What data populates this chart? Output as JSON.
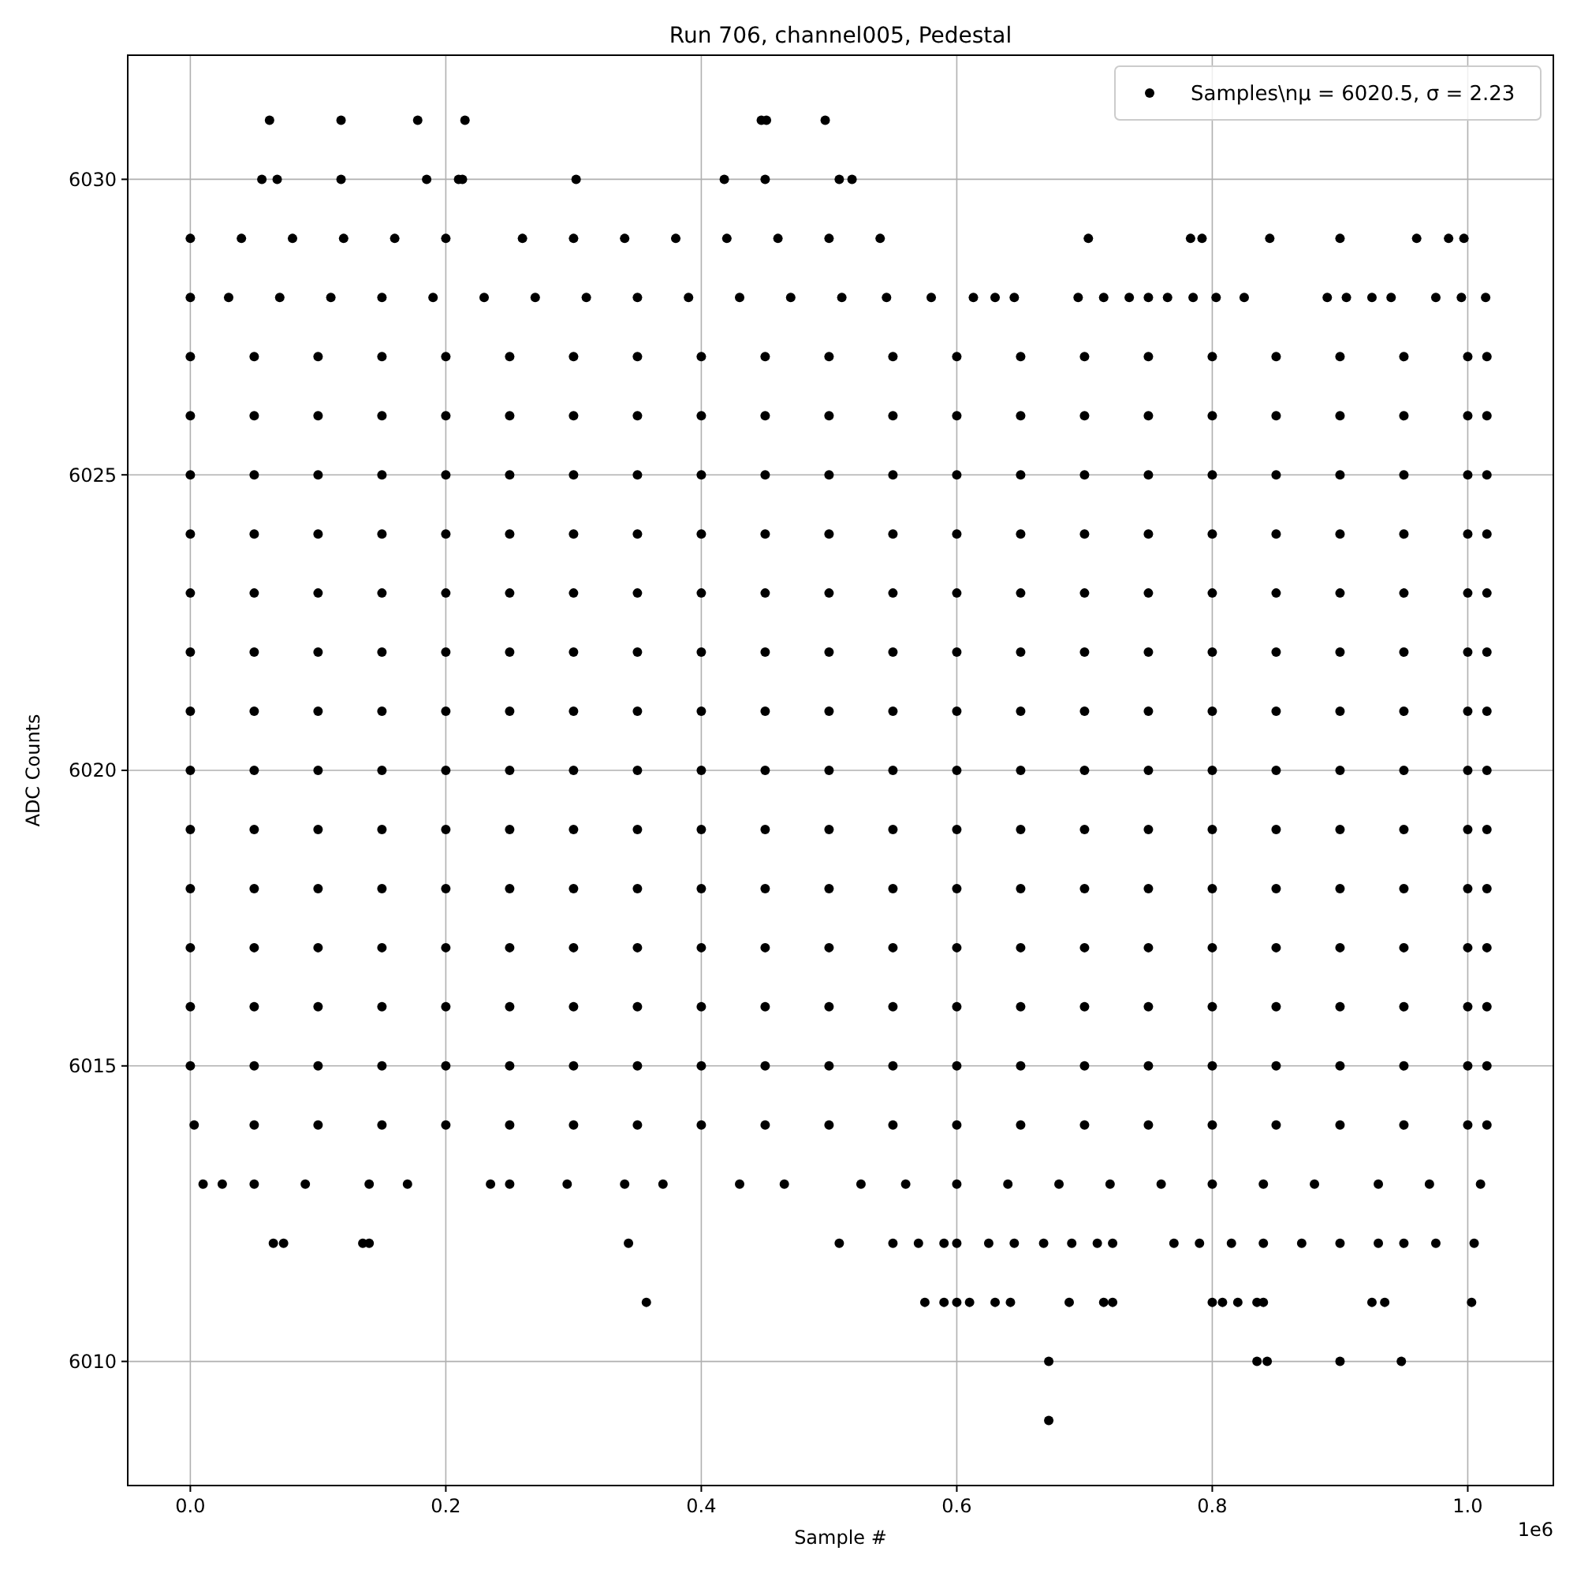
{
  "chart_data": {
    "type": "scatter",
    "title": "Run 706, channel005, Pedestal",
    "xlabel": "Sample #",
    "ylabel": "ADC Counts",
    "annotations": [
      "1e6"
    ],
    "xlim": [
      -0.049,
      1.067
    ],
    "ylim": [
      6007.9,
      6032.1
    ],
    "xticks": [
      {
        "value": 0,
        "label": "0.0"
      },
      0.2,
      0.4,
      0.6,
      0.8,
      {
        "value": 1,
        "label": "1.0"
      }
    ],
    "yticks": [
      6010,
      6015,
      6020,
      6025,
      6030
    ],
    "grid": true,
    "legend": "top right",
    "marker": "circle",
    "series": [
      {
        "name": "Samples\\nμ = 6020.5, σ = 2.23",
        "color": "#000000",
        "x": [
          0.062,
          0.118,
          0.178,
          0.215,
          0.447,
          0.451,
          0.497,
          0.056,
          0.068,
          0.118,
          0.185,
          0.21,
          0.213,
          0.302,
          0.418,
          0.45,
          0.508,
          0.518,
          0,
          0.04,
          0.08,
          0.12,
          0.16,
          0.2,
          0.26,
          0.3,
          0.34,
          0.38,
          0.42,
          0.46,
          0.5,
          0.54,
          0.703,
          0.783,
          0.792,
          0.845,
          0.9,
          0.96,
          0.985,
          0.997,
          0,
          0.03,
          0.07,
          0.11,
          0.15,
          0.19,
          0.23,
          0.27,
          0.31,
          0.35,
          0.39,
          0.43,
          0.47,
          0.51,
          0.545,
          0.58,
          0.613,
          0.63,
          0.645,
          0.695,
          0.715,
          0.735,
          0.75,
          0.765,
          0.785,
          0.803,
          0.825,
          0.89,
          0.905,
          0.925,
          0.94,
          0.975,
          0.995,
          1.014,
          0,
          0.05,
          0.1,
          0.15,
          0.2,
          0.25,
          0.3,
          0.35,
          0.4,
          0.45,
          0.5,
          0.55,
          0.6,
          0.65,
          0.7,
          0.75,
          0.8,
          0.85,
          0.9,
          0.95,
          1,
          1.015,
          0,
          0.05,
          0.1,
          0.15,
          0.2,
          0.25,
          0.3,
          0.35,
          0.4,
          0.45,
          0.5,
          0.55,
          0.6,
          0.65,
          0.7,
          0.75,
          0.8,
          0.85,
          0.9,
          0.95,
          1,
          1.015,
          0,
          0.05,
          0.1,
          0.15,
          0.2,
          0.25,
          0.3,
          0.35,
          0.4,
          0.45,
          0.5,
          0.55,
          0.6,
          0.65,
          0.7,
          0.75,
          0.8,
          0.85,
          0.9,
          0.95,
          1,
          1.015,
          0,
          0.05,
          0.1,
          0.15,
          0.2,
          0.25,
          0.3,
          0.35,
          0.4,
          0.45,
          0.5,
          0.55,
          0.6,
          0.65,
          0.7,
          0.75,
          0.8,
          0.85,
          0.9,
          0.95,
          1,
          1.015,
          0,
          0.05,
          0.1,
          0.15,
          0.2,
          0.25,
          0.3,
          0.35,
          0.4,
          0.45,
          0.5,
          0.55,
          0.6,
          0.65,
          0.7,
          0.75,
          0.8,
          0.85,
          0.9,
          0.95,
          1,
          1.015,
          0,
          0.05,
          0.1,
          0.15,
          0.2,
          0.25,
          0.3,
          0.35,
          0.4,
          0.45,
          0.5,
          0.55,
          0.6,
          0.65,
          0.7,
          0.75,
          0.8,
          0.85,
          0.9,
          0.95,
          1,
          1.015,
          0,
          0.05,
          0.1,
          0.15,
          0.2,
          0.25,
          0.3,
          0.35,
          0.4,
          0.45,
          0.5,
          0.55,
          0.6,
          0.65,
          0.7,
          0.75,
          0.8,
          0.85,
          0.9,
          0.95,
          1,
          1.015,
          0,
          0.05,
          0.1,
          0.15,
          0.2,
          0.25,
          0.3,
          0.35,
          0.4,
          0.45,
          0.5,
          0.55,
          0.6,
          0.65,
          0.7,
          0.75,
          0.8,
          0.85,
          0.9,
          0.95,
          1,
          1.015,
          0,
          0.05,
          0.1,
          0.15,
          0.2,
          0.25,
          0.3,
          0.35,
          0.4,
          0.45,
          0.5,
          0.55,
          0.6,
          0.65,
          0.7,
          0.75,
          0.8,
          0.85,
          0.9,
          0.95,
          1,
          1.015,
          0,
          0.05,
          0.1,
          0.15,
          0.2,
          0.25,
          0.3,
          0.35,
          0.4,
          0.45,
          0.5,
          0.55,
          0.6,
          0.65,
          0.7,
          0.75,
          0.8,
          0.85,
          0.9,
          0.95,
          1,
          1.015,
          0,
          0.05,
          0.1,
          0.15,
          0.2,
          0.25,
          0.3,
          0.35,
          0.4,
          0.45,
          0.5,
          0.55,
          0.6,
          0.65,
          0.7,
          0.75,
          0.8,
          0.85,
          0.9,
          0.95,
          1,
          1.015,
          0,
          0.05,
          0.1,
          0.15,
          0.2,
          0.25,
          0.3,
          0.35,
          0.4,
          0.45,
          0.5,
          0.55,
          0.6,
          0.65,
          0.7,
          0.75,
          0.8,
          0.85,
          0.9,
          0.95,
          1,
          1.015,
          0,
          0.05,
          0.1,
          0.15,
          0.2,
          0.25,
          0.3,
          0.35,
          0.4,
          0.45,
          0.5,
          0.55,
          0.6,
          0.65,
          0.7,
          0.75,
          0.8,
          0.85,
          0.9,
          0.95,
          1,
          1.015,
          0.003,
          0.05,
          0.1,
          0.15,
          0.2,
          0.25,
          0.3,
          0.35,
          0.4,
          0.45,
          0.5,
          0.55,
          0.6,
          0.65,
          0.7,
          0.75,
          0.8,
          0.85,
          0.9,
          0.95,
          1,
          1.015,
          0.01,
          0.025,
          0.05,
          0.09,
          0.14,
          0.17,
          0.235,
          0.25,
          0.295,
          0.34,
          0.37,
          0.43,
          0.465,
          0.525,
          0.56,
          0.6,
          0.64,
          0.68,
          0.72,
          0.76,
          0.8,
          0.84,
          0.88,
          0.93,
          0.97,
          1.01,
          0.065,
          0.073,
          0.135,
          0.14,
          0.343,
          0.508,
          0.55,
          0.57,
          0.59,
          0.6,
          0.625,
          0.645,
          0.668,
          0.69,
          0.71,
          0.722,
          0.77,
          0.79,
          0.815,
          0.84,
          0.87,
          0.9,
          0.93,
          0.95,
          0.975,
          1.005,
          0.357,
          0.575,
          0.59,
          0.6,
          0.61,
          0.63,
          0.642,
          0.688,
          0.715,
          0.722,
          0.8,
          0.808,
          0.82,
          0.835,
          0.84,
          0.925,
          0.935,
          1.003,
          0.672,
          0.835,
          0.843,
          0.9,
          0.948,
          0.672
        ],
        "values": [
          6031,
          6031,
          6031,
          6031,
          6031,
          6031,
          6031,
          6030,
          6030,
          6030,
          6030,
          6030,
          6030,
          6030,
          6030,
          6030,
          6030,
          6030,
          6029,
          6029,
          6029,
          6029,
          6029,
          6029,
          6029,
          6029,
          6029,
          6029,
          6029,
          6029,
          6029,
          6029,
          6029,
          6029,
          6029,
          6029,
          6029,
          6029,
          6029,
          6029,
          6028,
          6028,
          6028,
          6028,
          6028,
          6028,
          6028,
          6028,
          6028,
          6028,
          6028,
          6028,
          6028,
          6028,
          6028,
          6028,
          6028,
          6028,
          6028,
          6028,
          6028,
          6028,
          6028,
          6028,
          6028,
          6028,
          6028,
          6028,
          6028,
          6028,
          6028,
          6028,
          6028,
          6028,
          6027,
          6027,
          6027,
          6027,
          6027,
          6027,
          6027,
          6027,
          6027,
          6027,
          6027,
          6027,
          6027,
          6027,
          6027,
          6027,
          6027,
          6027,
          6027,
          6027,
          6027,
          6027,
          6026,
          6026,
          6026,
          6026,
          6026,
          6026,
          6026,
          6026,
          6026,
          6026,
          6026,
          6026,
          6026,
          6026,
          6026,
          6026,
          6026,
          6026,
          6026,
          6026,
          6026,
          6026,
          6025,
          6025,
          6025,
          6025,
          6025,
          6025,
          6025,
          6025,
          6025,
          6025,
          6025,
          6025,
          6025,
          6025,
          6025,
          6025,
          6025,
          6025,
          6025,
          6025,
          6025,
          6025,
          6024,
          6024,
          6024,
          6024,
          6024,
          6024,
          6024,
          6024,
          6024,
          6024,
          6024,
          6024,
          6024,
          6024,
          6024,
          6024,
          6024,
          6024,
          6024,
          6024,
          6024,
          6024,
          6023,
          6023,
          6023,
          6023,
          6023,
          6023,
          6023,
          6023,
          6023,
          6023,
          6023,
          6023,
          6023,
          6023,
          6023,
          6023,
          6023,
          6023,
          6023,
          6023,
          6023,
          6023,
          6022,
          6022,
          6022,
          6022,
          6022,
          6022,
          6022,
          6022,
          6022,
          6022,
          6022,
          6022,
          6022,
          6022,
          6022,
          6022,
          6022,
          6022,
          6022,
          6022,
          6022,
          6022,
          6021,
          6021,
          6021,
          6021,
          6021,
          6021,
          6021,
          6021,
          6021,
          6021,
          6021,
          6021,
          6021,
          6021,
          6021,
          6021,
          6021,
          6021,
          6021,
          6021,
          6021,
          6021,
          6020,
          6020,
          6020,
          6020,
          6020,
          6020,
          6020,
          6020,
          6020,
          6020,
          6020,
          6020,
          6020,
          6020,
          6020,
          6020,
          6020,
          6020,
          6020,
          6020,
          6020,
          6020,
          6019,
          6019,
          6019,
          6019,
          6019,
          6019,
          6019,
          6019,
          6019,
          6019,
          6019,
          6019,
          6019,
          6019,
          6019,
          6019,
          6019,
          6019,
          6019,
          6019,
          6019,
          6019,
          6018,
          6018,
          6018,
          6018,
          6018,
          6018,
          6018,
          6018,
          6018,
          6018,
          6018,
          6018,
          6018,
          6018,
          6018,
          6018,
          6018,
          6018,
          6018,
          6018,
          6018,
          6018,
          6017,
          6017,
          6017,
          6017,
          6017,
          6017,
          6017,
          6017,
          6017,
          6017,
          6017,
          6017,
          6017,
          6017,
          6017,
          6017,
          6017,
          6017,
          6017,
          6017,
          6017,
          6017,
          6016,
          6016,
          6016,
          6016,
          6016,
          6016,
          6016,
          6016,
          6016,
          6016,
          6016,
          6016,
          6016,
          6016,
          6016,
          6016,
          6016,
          6016,
          6016,
          6016,
          6016,
          6016,
          6015,
          6015,
          6015,
          6015,
          6015,
          6015,
          6015,
          6015,
          6015,
          6015,
          6015,
          6015,
          6015,
          6015,
          6015,
          6015,
          6015,
          6015,
          6015,
          6015,
          6015,
          6015,
          6014,
          6014,
          6014,
          6014,
          6014,
          6014,
          6014,
          6014,
          6014,
          6014,
          6014,
          6014,
          6014,
          6014,
          6014,
          6014,
          6014,
          6014,
          6014,
          6014,
          6014,
          6014,
          6013,
          6013,
          6013,
          6013,
          6013,
          6013,
          6013,
          6013,
          6013,
          6013,
          6013,
          6013,
          6013,
          6013,
          6013,
          6013,
          6013,
          6013,
          6013,
          6013,
          6013,
          6013,
          6013,
          6013,
          6013,
          6013,
          6012,
          6012,
          6012,
          6012,
          6012,
          6012,
          6012,
          6012,
          6012,
          6012,
          6012,
          6012,
          6012,
          6012,
          6012,
          6012,
          6012,
          6012,
          6012,
          6012,
          6012,
          6012,
          6012,
          6012,
          6012,
          6012,
          6011,
          6011,
          6011,
          6011,
          6011,
          6011,
          6011,
          6011,
          6011,
          6011,
          6011,
          6011,
          6011,
          6011,
          6011,
          6011,
          6011,
          6011,
          6010,
          6010,
          6010,
          6010,
          6010,
          6009
        ]
      }
    ]
  }
}
